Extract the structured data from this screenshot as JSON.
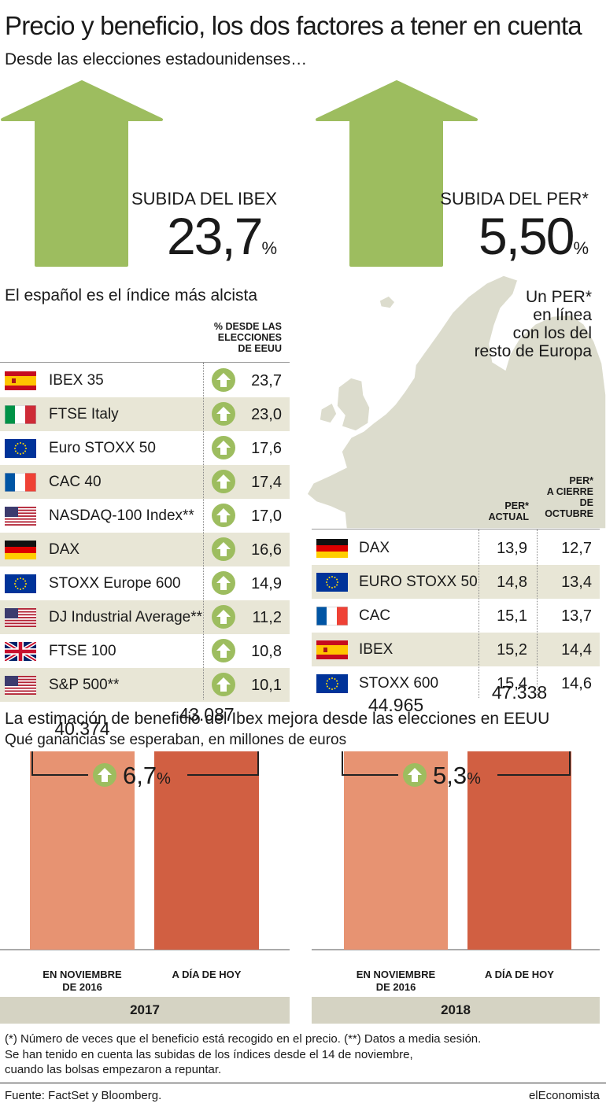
{
  "header": {
    "title": "Precio y beneficio, los dos factores a tener en cuenta",
    "subtitle": "Desde las elecciones estadounidenses…"
  },
  "kpis": [
    {
      "label": "SUBIDA DEL IBEX",
      "value": "23,7",
      "unit": "%"
    },
    {
      "label": "SUBIDA DEL PER*",
      "value": "5,50",
      "unit": "%"
    }
  ],
  "colors": {
    "arrow_green": "#9dbd5f",
    "bar_light": "#e79372",
    "bar_dark": "#d15f42",
    "row_shade": "#e8e6d6",
    "year_band": "#d5d3c3",
    "map_land": "#dcdccd"
  },
  "left_table": {
    "heading": "El español es el índice más alcista",
    "column_header": [
      "% DESDE LAS",
      "ELECCIONES",
      "DE EEUU"
    ],
    "rows": [
      {
        "flag": "spain-flag",
        "name": "IBEX 35",
        "value": "23,7"
      },
      {
        "flag": "italy-flag",
        "name": "FTSE Italy",
        "value": "23,0"
      },
      {
        "flag": "eu-flag",
        "name": "Euro STOXX 50",
        "value": "17,6"
      },
      {
        "flag": "france-flag",
        "name": "CAC 40",
        "value": "17,4"
      },
      {
        "flag": "usa-flag",
        "name": "NASDAQ-100 Index**",
        "value": "17,0"
      },
      {
        "flag": "germany-flag",
        "name": "DAX",
        "value": "16,6"
      },
      {
        "flag": "eu-flag",
        "name": "STOXX Europe 600",
        "value": "14,9"
      },
      {
        "flag": "usa-flag",
        "name": "DJ Industrial Average**",
        "value": "11,2"
      },
      {
        "flag": "uk-flag",
        "name": "FTSE 100",
        "value": "10,8"
      },
      {
        "flag": "usa-flag",
        "name": "S&P 500**",
        "value": "10,1"
      }
    ]
  },
  "right_table": {
    "map_caption": [
      "Un PER*",
      "en línea",
      "con los del",
      "resto de Europa"
    ],
    "col1_header": [
      "PER*",
      "ACTUAL"
    ],
    "col2_header": [
      "PER*",
      "A CIERRE",
      "DE",
      "OCTUBRE"
    ],
    "rows": [
      {
        "flag": "germany-flag",
        "name": "DAX",
        "actual": "13,9",
        "october": "12,7"
      },
      {
        "flag": "eu-flag",
        "name": "EURO STOXX 50",
        "actual": "14,8",
        "october": "13,4"
      },
      {
        "flag": "france-flag",
        "name": "CAC",
        "actual": "15,1",
        "october": "13,7"
      },
      {
        "flag": "spain-flag",
        "name": "IBEX",
        "actual": "15,2",
        "october": "14,4"
      },
      {
        "flag": "eu-flag",
        "name": "STOXX 600",
        "actual": "15,4",
        "october": "14,6"
      }
    ]
  },
  "earnings": {
    "heading": "La estimación de beneficio del Ibex mejora desde las elecciones en EEUU",
    "subheading": "Qué ganancias se esperaban, en millones de euros"
  },
  "chart_data": [
    {
      "type": "bar",
      "group": "2017",
      "categories": [
        "EN NOVIEMBRE DE 2016",
        "A DÍA DE HOY"
      ],
      "category_lines": [
        [
          "EN NOVIEMBRE",
          "DE 2016"
        ],
        [
          "A DÍA DE HOY"
        ]
      ],
      "values": [
        40374,
        43087
      ],
      "value_labels": [
        "40.374",
        "43.087"
      ],
      "change": "6,7",
      "change_unit": "%",
      "colors": [
        "#e79372",
        "#d15f42"
      ],
      "ylim": [
        0,
        50000
      ]
    },
    {
      "type": "bar",
      "group": "2018",
      "categories": [
        "EN NOVIEMBRE DE 2016",
        "A DÍA DE HOY"
      ],
      "category_lines": [
        [
          "EN NOVIEMBRE",
          "DE 2016"
        ],
        [
          "A DÍA DE HOY"
        ]
      ],
      "values": [
        44965,
        47338
      ],
      "value_labels": [
        "44.965",
        "47.338"
      ],
      "change": "5,3",
      "change_unit": "%",
      "colors": [
        "#e79372",
        "#d15f42"
      ],
      "ylim": [
        0,
        50000
      ]
    }
  ],
  "footer": {
    "note1": "(*) Número de veces que el beneficio está recogido en el precio. (**) Datos a media sesión.",
    "note2": "Se han tenido en cuenta las subidas de los índices desde el 14 de noviembre,",
    "note3": "cuando las bolsas empezaron a repuntar.",
    "source": "Fuente: FactSet y Bloomberg.",
    "brand": "elEconomista"
  }
}
